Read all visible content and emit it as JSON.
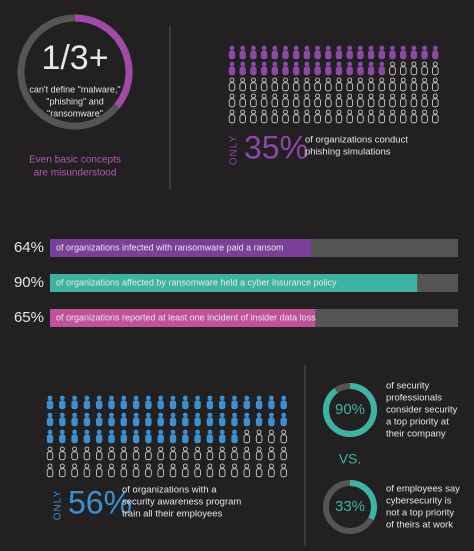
{
  "top_left": {
    "big": "1/3+",
    "text": [
      "can't define \"malware,\"",
      "\"phishing\" and",
      "\"ransomware\""
    ],
    "caption": [
      "Even basic concepts",
      "are misunderstood"
    ]
  },
  "top_right": {
    "prefix": "ONLY",
    "value": 35,
    "value_label": "35%",
    "text": [
      "of organizations conduct",
      "phishing simulations"
    ],
    "color": "#8a49a6"
  },
  "bars": [
    {
      "value": 64,
      "value_label": "64%",
      "text": "of organizations infected with ransomware paid a ransom",
      "color": "#7b3f98"
    },
    {
      "value": 90,
      "value_label": "90%",
      "text": "of organizations affected by ransomware held a cyber insurance policy",
      "color": "#3fb3a2"
    },
    {
      "value": 65,
      "value_label": "65%",
      "text": "of organizations reported at least one incident of insider data loss",
      "color": "#c0529c"
    }
  ],
  "bottom_left": {
    "prefix": "ONLY",
    "value": 56,
    "value_label": "56%",
    "text": [
      "of organizations with a",
      "security awareness program",
      "train all their employees"
    ],
    "color": "#3d8fd0"
  },
  "bottom_right": {
    "color": "#3fb3a2",
    "vs": "VS.",
    "items": [
      {
        "value": 90,
        "value_label": "90%",
        "text": [
          "of security",
          "professionals",
          "consider security",
          "a top priority at",
          "their company"
        ]
      },
      {
        "value": 33,
        "value_label": "33%",
        "text": [
          "of employees say",
          "cybersecurity is",
          "not a top priority",
          "of theirs at work"
        ]
      }
    ]
  }
}
